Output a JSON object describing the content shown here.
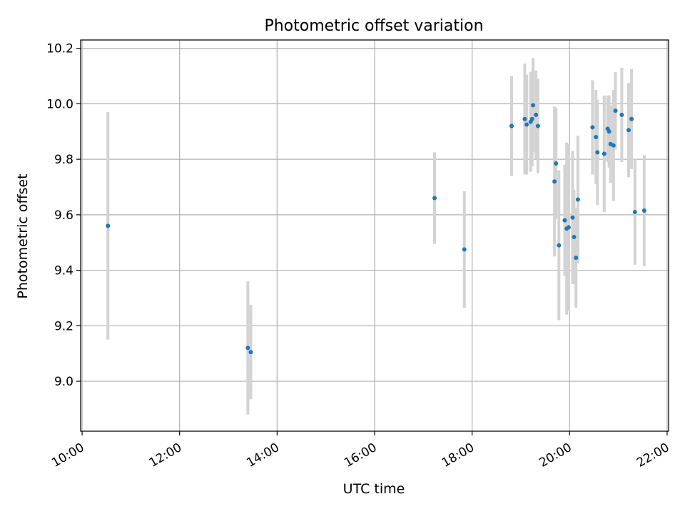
{
  "chart_data": {
    "type": "scatter",
    "title": "Photometric offset variation",
    "xlabel": "UTC time",
    "ylabel": "Photometric offset",
    "x_unit": "hours (UTC)",
    "xlim": [
      9.97,
      22.03
    ],
    "ylim": [
      8.82,
      10.23
    ],
    "grid": true,
    "x_ticks": [
      {
        "value": 10,
        "label": "10:00"
      },
      {
        "value": 12,
        "label": "12:00"
      },
      {
        "value": 14,
        "label": "14:00"
      },
      {
        "value": 16,
        "label": "16:00"
      },
      {
        "value": 18,
        "label": "18:00"
      },
      {
        "value": 20,
        "label": "20:00"
      },
      {
        "value": 22,
        "label": "22:00"
      }
    ],
    "y_ticks": [
      {
        "value": 9.0,
        "label": "9.0"
      },
      {
        "value": 9.2,
        "label": "9.2"
      },
      {
        "value": 9.4,
        "label": "9.4"
      },
      {
        "value": 9.6,
        "label": "9.6"
      },
      {
        "value": 9.8,
        "label": "9.8"
      },
      {
        "value": 10.0,
        "label": "10.0"
      },
      {
        "value": 10.2,
        "label": "10.2"
      }
    ],
    "colors": {
      "marker": "#1f77b4",
      "errorbar": "#d3d3d3",
      "grid": "#b0b0b0",
      "axes": "#000000"
    },
    "points": [
      {
        "x": 10.53,
        "y": 9.56,
        "err": 0.41
      },
      {
        "x": 13.4,
        "y": 9.12,
        "err": 0.24
      },
      {
        "x": 13.46,
        "y": 9.105,
        "err": 0.17
      },
      {
        "x": 17.23,
        "y": 9.66,
        "err": 0.165
      },
      {
        "x": 17.84,
        "y": 9.475,
        "err": 0.21
      },
      {
        "x": 18.81,
        "y": 9.92,
        "err": 0.18
      },
      {
        "x": 19.08,
        "y": 9.945,
        "err": 0.2
      },
      {
        "x": 19.12,
        "y": 9.925,
        "err": 0.18
      },
      {
        "x": 19.2,
        "y": 9.935,
        "err": 0.18
      },
      {
        "x": 19.23,
        "y": 9.945,
        "err": 0.17
      },
      {
        "x": 19.25,
        "y": 9.995,
        "err": 0.17
      },
      {
        "x": 19.31,
        "y": 9.96,
        "err": 0.16
      },
      {
        "x": 19.35,
        "y": 9.92,
        "err": 0.17
      },
      {
        "x": 19.69,
        "y": 9.72,
        "err": 0.27
      },
      {
        "x": 19.72,
        "y": 9.785,
        "err": 0.2
      },
      {
        "x": 19.78,
        "y": 9.49,
        "err": 0.27
      },
      {
        "x": 19.9,
        "y": 9.58,
        "err": 0.2
      },
      {
        "x": 19.94,
        "y": 9.55,
        "err": 0.31
      },
      {
        "x": 19.98,
        "y": 9.555,
        "err": 0.3
      },
      {
        "x": 20.06,
        "y": 9.59,
        "err": 0.24
      },
      {
        "x": 20.09,
        "y": 9.52,
        "err": 0.17
      },
      {
        "x": 20.13,
        "y": 9.445,
        "err": 0.18
      },
      {
        "x": 20.17,
        "y": 9.655,
        "err": 0.23
      },
      {
        "x": 20.47,
        "y": 9.915,
        "err": 0.17
      },
      {
        "x": 20.54,
        "y": 9.88,
        "err": 0.17
      },
      {
        "x": 20.57,
        "y": 9.825,
        "err": 0.19
      },
      {
        "x": 20.71,
        "y": 9.82,
        "err": 0.21
      },
      {
        "x": 20.78,
        "y": 9.91,
        "err": 0.12
      },
      {
        "x": 20.81,
        "y": 9.9,
        "err": 0.13
      },
      {
        "x": 20.84,
        "y": 9.855,
        "err": 0.14
      },
      {
        "x": 20.9,
        "y": 9.85,
        "err": 0.2
      },
      {
        "x": 20.94,
        "y": 9.975,
        "err": 0.14
      },
      {
        "x": 21.07,
        "y": 9.96,
        "err": 0.17
      },
      {
        "x": 21.21,
        "y": 9.905,
        "err": 0.17
      },
      {
        "x": 21.27,
        "y": 9.945,
        "err": 0.18
      },
      {
        "x": 21.34,
        "y": 9.61,
        "err": 0.19
      },
      {
        "x": 21.53,
        "y": 9.615,
        "err": 0.2
      }
    ]
  }
}
